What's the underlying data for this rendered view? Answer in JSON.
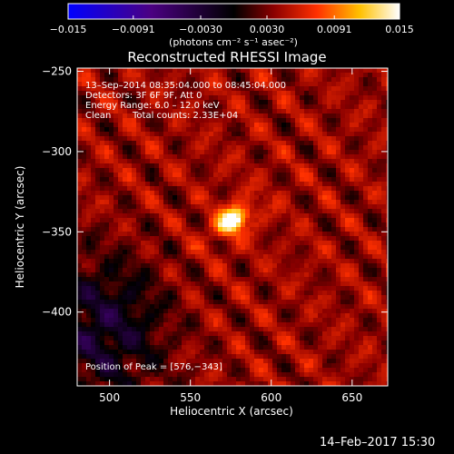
{
  "chart_data": {
    "type": "heatmap",
    "title": "Reconstructed RHESSI Image",
    "xlabel": "Heliocentric X (arcsec)",
    "ylabel": "Heliocentric Y (arcsec)",
    "xlim": [
      480,
      672
    ],
    "ylim": [
      -446,
      -248
    ],
    "x_ticks": [
      500,
      550,
      600,
      650
    ],
    "y_ticks": [
      -250,
      -300,
      -350,
      -400
    ],
    "x_tick_labels": [
      "500",
      "550",
      "600",
      "650"
    ],
    "y_tick_labels": [
      "−250",
      "−300",
      "−350",
      "−400"
    ],
    "colorbar": {
      "range": [
        -0.015,
        0.015
      ],
      "ticks": [
        -0.015,
        -0.0091,
        -0.003,
        0.003,
        0.0091,
        0.015
      ],
      "tick_labels": [
        "−0.015",
        "−0.0091",
        "−0.0030",
        "0.0030",
        "0.0091",
        "0.015"
      ],
      "unit_label": "(photons cm⁻² s⁻¹ asec⁻²)",
      "colors": [
        "#0000ff",
        "#4b0082",
        "#000000",
        "#8b0000",
        "#ff4500",
        "#ffd700",
        "#ffffff"
      ]
    },
    "annotations": [
      "13–Sep–2014 08:35:04.000 to 08:45:04.000",
      "Detectors: 3F 6F 9F, Att 0",
      "Energy Range: 6.0 – 12.0 keV",
      "Clean",
      "Total counts: 2.33E+04"
    ],
    "peak_label": "Position of Peak = [576,−343]",
    "peak": {
      "x": 576,
      "y": -343,
      "value": 0.015
    },
    "background_level": 0.004
  },
  "footer": {
    "date": "14–Feb–2017 15:30"
  }
}
